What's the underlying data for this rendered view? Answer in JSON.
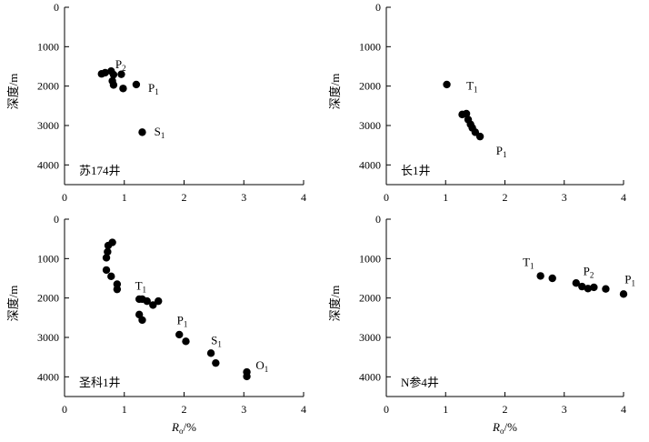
{
  "chart_data": [
    {
      "type": "scatter",
      "well_label": "苏174井",
      "xlabel": "",
      "ylabel": "深度/m",
      "xlim": [
        0,
        4
      ],
      "ylim": [
        0,
        4500
      ],
      "y_inverted": true,
      "xticks": [
        "0",
        "1",
        "2",
        "3",
        "4"
      ],
      "yticks": [
        "0",
        "1000",
        "2000",
        "3000",
        "4000"
      ],
      "points": [
        {
          "x": 0.62,
          "y": 1690
        },
        {
          "x": 0.68,
          "y": 1660
        },
        {
          "x": 0.78,
          "y": 1620
        },
        {
          "x": 0.82,
          "y": 1710
        },
        {
          "x": 0.95,
          "y": 1700
        },
        {
          "x": 0.8,
          "y": 1870
        },
        {
          "x": 0.82,
          "y": 1970
        },
        {
          "x": 0.98,
          "y": 2060
        },
        {
          "x": 1.2,
          "y": 1960
        },
        {
          "x": 1.3,
          "y": 3170
        }
      ],
      "annotations": [
        {
          "main": "P",
          "sub": "2",
          "x": 0.85,
          "y": 1450
        },
        {
          "main": "P",
          "sub": "1",
          "x": 1.4,
          "y": 2050
        },
        {
          "main": "S",
          "sub": "1",
          "x": 1.5,
          "y": 3160
        }
      ]
    },
    {
      "type": "scatter",
      "well_label": "长1井",
      "xlabel": "",
      "ylabel": "深度/m",
      "xlim": [
        0,
        4
      ],
      "ylim": [
        0,
        4500
      ],
      "y_inverted": true,
      "xticks": [
        "0",
        "1",
        "2",
        "3",
        "4"
      ],
      "yticks": [
        "0",
        "1000",
        "2000",
        "3000",
        "4000"
      ],
      "points": [
        {
          "x": 1.02,
          "y": 1960
        },
        {
          "x": 1.28,
          "y": 2720
        },
        {
          "x": 1.35,
          "y": 2700
        },
        {
          "x": 1.38,
          "y": 2850
        },
        {
          "x": 1.42,
          "y": 2970
        },
        {
          "x": 1.45,
          "y": 3060
        },
        {
          "x": 1.5,
          "y": 3170
        },
        {
          "x": 1.58,
          "y": 3280
        }
      ],
      "annotations": [
        {
          "main": "T",
          "sub": "1",
          "x": 1.35,
          "y": 2000
        },
        {
          "main": "P",
          "sub": "1",
          "x": 1.85,
          "y": 3650
        }
      ]
    },
    {
      "type": "scatter",
      "well_label": "圣科1井",
      "xlabel": "Ro/%",
      "xlabel_main": "R",
      "xlabel_sub": "o",
      "xlabel_suffix": "/%",
      "ylabel": "深度/m",
      "xlim": [
        0,
        4
      ],
      "ylim": [
        0,
        4500
      ],
      "y_inverted": true,
      "xticks": [
        "0",
        "1",
        "2",
        "3",
        "4"
      ],
      "yticks": [
        "0",
        "1000",
        "2000",
        "3000",
        "4000"
      ],
      "points": [
        {
          "x": 0.8,
          "y": 590
        },
        {
          "x": 0.73,
          "y": 670
        },
        {
          "x": 0.72,
          "y": 830
        },
        {
          "x": 0.7,
          "y": 980
        },
        {
          "x": 0.7,
          "y": 1290
        },
        {
          "x": 0.78,
          "y": 1450
        },
        {
          "x": 0.88,
          "y": 1650
        },
        {
          "x": 0.88,
          "y": 1780
        },
        {
          "x": 1.25,
          "y": 2030
        },
        {
          "x": 1.3,
          "y": 2030
        },
        {
          "x": 1.38,
          "y": 2080
        },
        {
          "x": 1.48,
          "y": 2180
        },
        {
          "x": 1.57,
          "y": 2080
        },
        {
          "x": 1.25,
          "y": 2420
        },
        {
          "x": 1.3,
          "y": 2560
        },
        {
          "x": 1.92,
          "y": 2930
        },
        {
          "x": 2.03,
          "y": 3100
        },
        {
          "x": 2.45,
          "y": 3400
        },
        {
          "x": 2.53,
          "y": 3650
        },
        {
          "x": 3.05,
          "y": 3880
        },
        {
          "x": 3.05,
          "y": 3990
        }
      ],
      "annotations": [
        {
          "main": "T",
          "sub": "1",
          "x": 1.18,
          "y": 1700
        },
        {
          "main": "P",
          "sub": "1",
          "x": 1.88,
          "y": 2570
        },
        {
          "main": "S",
          "sub": "1",
          "x": 2.45,
          "y": 3080
        },
        {
          "main": "O",
          "sub": "1",
          "x": 3.2,
          "y": 3720
        }
      ]
    },
    {
      "type": "scatter",
      "well_label": "N参4井",
      "xlabel": "Ro/%",
      "xlabel_main": "R",
      "xlabel_sub": "o",
      "xlabel_suffix": "/%",
      "ylabel": "深度/m",
      "xlim": [
        0,
        4
      ],
      "ylim": [
        0,
        4500
      ],
      "y_inverted": true,
      "xticks": [
        "0",
        "1",
        "2",
        "3",
        "4"
      ],
      "yticks": [
        "0",
        "1000",
        "2000",
        "3000",
        "4000"
      ],
      "points": [
        {
          "x": 2.6,
          "y": 1440
        },
        {
          "x": 2.8,
          "y": 1500
        },
        {
          "x": 3.2,
          "y": 1620
        },
        {
          "x": 3.3,
          "y": 1710
        },
        {
          "x": 3.4,
          "y": 1760
        },
        {
          "x": 3.5,
          "y": 1730
        },
        {
          "x": 3.7,
          "y": 1770
        },
        {
          "x": 4.0,
          "y": 1900
        }
      ],
      "annotations": [
        {
          "main": "T",
          "sub": "1",
          "x": 2.3,
          "y": 1100
        },
        {
          "main": "P",
          "sub": "2",
          "x": 3.32,
          "y": 1330
        },
        {
          "main": "P",
          "sub": "1",
          "x": 4.02,
          "y": 1530
        }
      ]
    }
  ]
}
